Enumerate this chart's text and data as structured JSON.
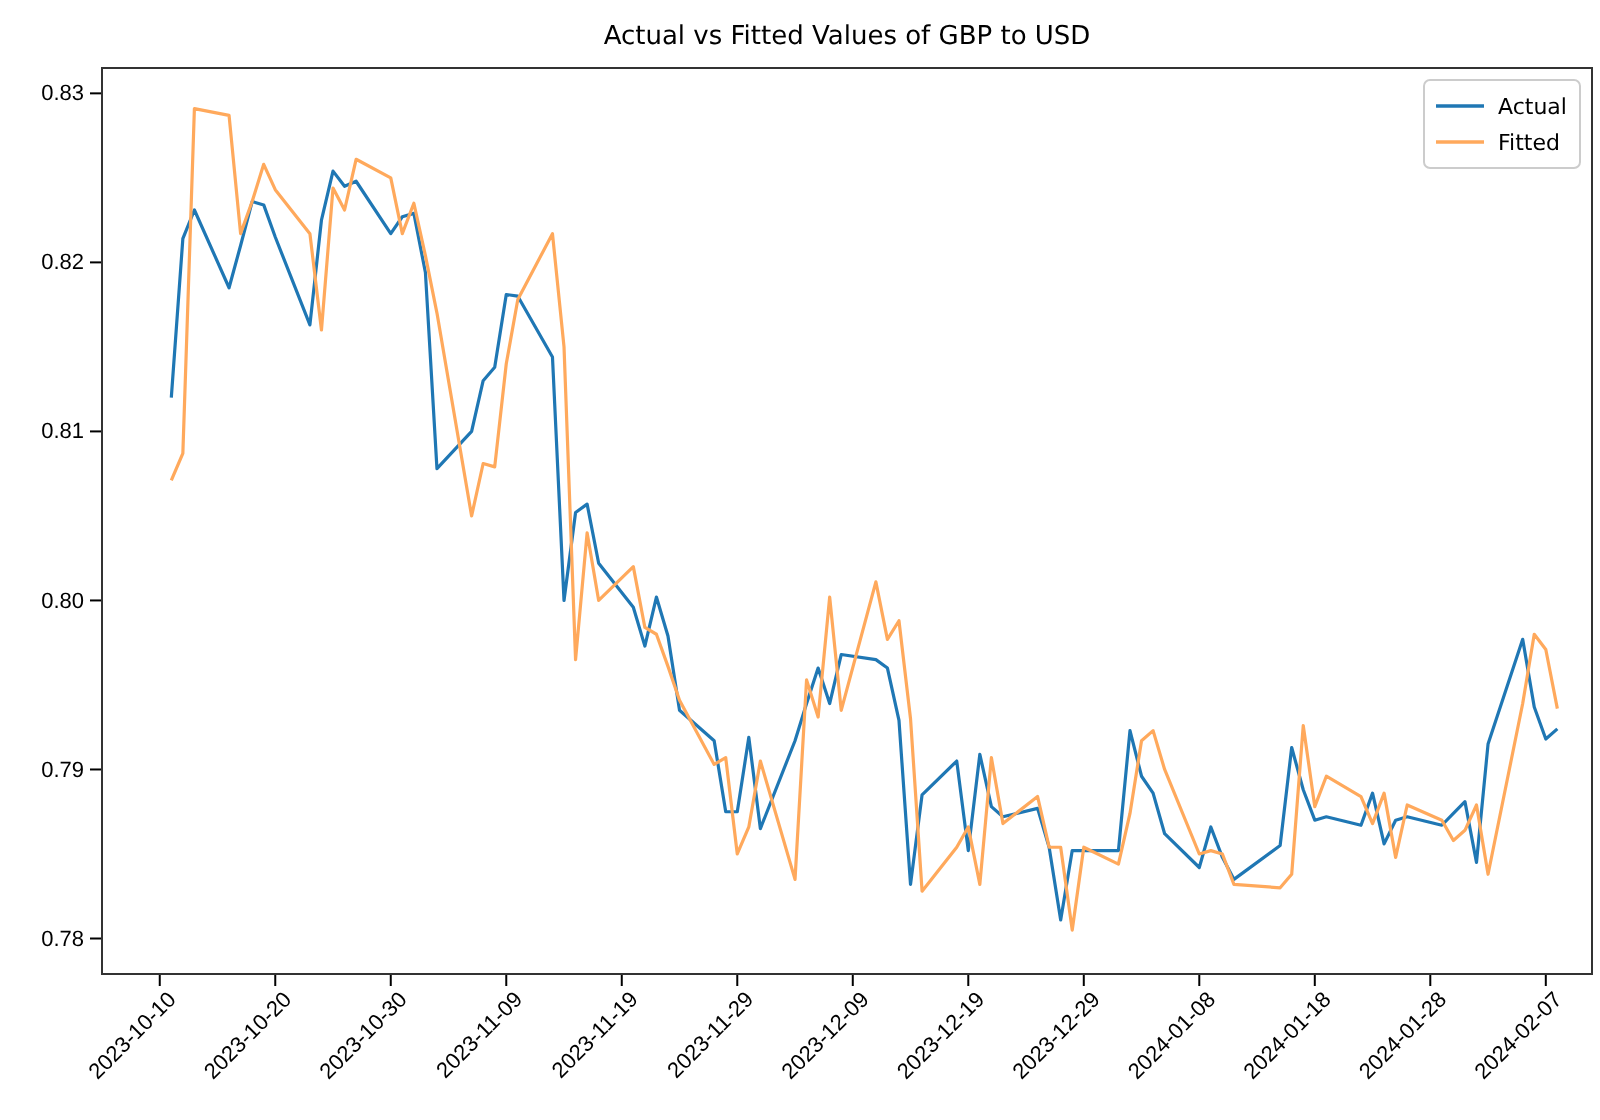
{
  "chart_data": {
    "type": "line",
    "title": "Actual vs Fitted Values of GBP to USD",
    "x": [
      "2023-10-11",
      "2023-10-12",
      "2023-10-13",
      "2023-10-16",
      "2023-10-17",
      "2023-10-18",
      "2023-10-19",
      "2023-10-20",
      "2023-10-23",
      "2023-10-24",
      "2023-10-25",
      "2023-10-26",
      "2023-10-27",
      "2023-10-30",
      "2023-10-31",
      "2023-11-01",
      "2023-11-02",
      "2023-11-03",
      "2023-11-06",
      "2023-11-07",
      "2023-11-08",
      "2023-11-09",
      "2023-11-10",
      "2023-11-13",
      "2023-11-14",
      "2023-11-15",
      "2023-11-16",
      "2023-11-17",
      "2023-11-20",
      "2023-11-21",
      "2023-11-22",
      "2023-11-23",
      "2023-11-24",
      "2023-11-27",
      "2023-11-28",
      "2023-11-29",
      "2023-11-30",
      "2023-12-01",
      "2023-12-04",
      "2023-12-05",
      "2023-12-06",
      "2023-12-07",
      "2023-12-08",
      "2023-12-11",
      "2023-12-12",
      "2023-12-13",
      "2023-12-14",
      "2023-12-15",
      "2023-12-18",
      "2023-12-19",
      "2023-12-20",
      "2023-12-21",
      "2023-12-22",
      "2023-12-25",
      "2023-12-26",
      "2023-12-27",
      "2023-12-28",
      "2023-12-29",
      "2024-01-01",
      "2024-01-02",
      "2024-01-03",
      "2024-01-04",
      "2024-01-05",
      "2024-01-08",
      "2024-01-09",
      "2024-01-10",
      "2024-01-11",
      "2024-01-15",
      "2024-01-16",
      "2024-01-17",
      "2024-01-18",
      "2024-01-19",
      "2024-01-22",
      "2024-01-23",
      "2024-01-24",
      "2024-01-25",
      "2024-01-26",
      "2024-01-29",
      "2024-01-30",
      "2024-01-31",
      "2024-02-01",
      "2024-02-02",
      "2024-02-05",
      "2024-02-06",
      "2024-02-07",
      "2024-02-08"
    ],
    "series": [
      {
        "name": "Actual",
        "color": "#1f77b4",
        "values": [
          0.812,
          0.8214,
          0.8231,
          0.8185,
          0.821,
          0.8236,
          0.8234,
          0.8215,
          0.8163,
          0.8225,
          0.8254,
          0.8245,
          0.8248,
          0.8217,
          0.8227,
          0.8229,
          0.8194,
          0.8078,
          0.81,
          0.813,
          0.8138,
          0.8181,
          0.818,
          0.8144,
          0.8,
          0.8052,
          0.8057,
          0.8022,
          0.7996,
          0.7973,
          0.8002,
          0.7979,
          0.7935,
          0.7917,
          0.7875,
          0.7875,
          0.7919,
          0.7865,
          0.7917,
          0.7939,
          0.796,
          0.7939,
          0.7968,
          0.7965,
          0.796,
          0.7929,
          0.7832,
          0.7885,
          0.7905,
          0.7852,
          0.7909,
          0.7878,
          0.7872,
          0.7877,
          0.7854,
          0.7811,
          0.7852,
          0.7852,
          0.7852,
          0.7923,
          0.7896,
          0.7886,
          0.7862,
          0.7842,
          0.7866,
          0.7848,
          0.7835,
          0.7855,
          0.7913,
          0.7888,
          0.787,
          0.7872,
          0.7867,
          0.7886,
          0.7856,
          0.787,
          0.7872,
          0.7867,
          0.7874,
          0.7881,
          0.7845,
          0.7915,
          0.7977,
          0.7937,
          0.7918,
          0.7924
        ]
      },
      {
        "name": "Fitted",
        "color": "#ffa95c",
        "values": [
          0.8071,
          0.8087,
          0.8291,
          0.8287,
          0.8217,
          0.8236,
          0.8258,
          0.8243,
          0.8217,
          0.816,
          0.8244,
          0.8231,
          0.8261,
          0.825,
          0.8217,
          0.8235,
          0.8204,
          0.817,
          0.805,
          0.8081,
          0.8079,
          0.814,
          0.8178,
          0.8217,
          0.815,
          0.7965,
          0.804,
          0.8,
          0.802,
          0.7984,
          0.798,
          0.7961,
          0.7941,
          0.7903,
          0.7907,
          0.785,
          0.7866,
          0.7905,
          0.7835,
          0.7953,
          0.7931,
          0.8002,
          0.7935,
          0.8011,
          0.7977,
          0.7988,
          0.793,
          0.7828,
          0.7854,
          0.7866,
          0.7832,
          0.7907,
          0.7868,
          0.7884,
          0.7854,
          0.7854,
          0.7805,
          0.7854,
          0.7844,
          0.7874,
          0.7917,
          0.7923,
          0.79,
          0.785,
          0.7852,
          0.785,
          0.7832,
          0.783,
          0.7838,
          0.7926,
          0.7878,
          0.7896,
          0.7884,
          0.7868,
          0.7886,
          0.7848,
          0.7879,
          0.787,
          0.7858,
          0.7864,
          0.7879,
          0.7838,
          0.7939,
          0.798,
          0.7971,
          0.7936
        ]
      }
    ],
    "xlim": [
      "2023-10-05",
      "2024-02-11"
    ],
    "xticks": [
      {
        "value": "2023-10-10",
        "label": "2023-10-10"
      },
      {
        "value": "2023-10-20",
        "label": "2023-10-20"
      },
      {
        "value": "2023-10-30",
        "label": "2023-10-30"
      },
      {
        "value": "2023-11-09",
        "label": "2023-11-09"
      },
      {
        "value": "2023-11-19",
        "label": "2023-11-19"
      },
      {
        "value": "2023-11-29",
        "label": "2023-11-29"
      },
      {
        "value": "2023-12-09",
        "label": "2023-12-09"
      },
      {
        "value": "2023-12-19",
        "label": "2023-12-19"
      },
      {
        "value": "2023-12-29",
        "label": "2023-12-29"
      },
      {
        "value": "2024-01-08",
        "label": "2024-01-08"
      },
      {
        "value": "2024-01-18",
        "label": "2024-01-18"
      },
      {
        "value": "2024-01-28",
        "label": "2024-01-28"
      },
      {
        "value": "2024-02-07",
        "label": "2024-02-07"
      }
    ],
    "ylim": [
      0.7779,
      0.8315
    ],
    "yticks": [
      {
        "value": 0.78,
        "label": "0.78"
      },
      {
        "value": 0.79,
        "label": "0.79"
      },
      {
        "value": 0.8,
        "label": "0.80"
      },
      {
        "value": 0.81,
        "label": "0.81"
      },
      {
        "value": 0.82,
        "label": "0.82"
      },
      {
        "value": 0.83,
        "label": "0.83"
      }
    ],
    "legend": "top right",
    "grid": false,
    "marker": "none",
    "line_style": "solid"
  }
}
